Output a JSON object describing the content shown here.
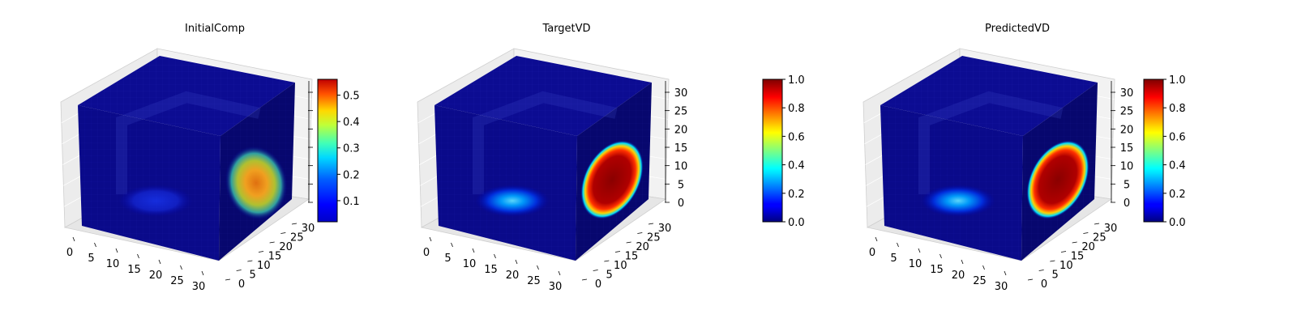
{
  "chart_data": [
    {
      "type": "3d-voxel",
      "title": "InitialComp",
      "x_ticks": [
        "0",
        "5",
        "10",
        "15",
        "20",
        "25",
        "30"
      ],
      "y_ticks": [
        "0",
        "5",
        "10",
        "15",
        "20",
        "25",
        "30"
      ],
      "z_ticks": [],
      "colorbar": {
        "colormap": "jet",
        "range": [
          0.02,
          0.56
        ],
        "ticks": [
          "0.1",
          "0.2",
          "0.3",
          "0.4",
          "0.5"
        ],
        "tick_values": [
          0.1,
          0.2,
          0.3,
          0.4,
          0.5
        ]
      },
      "side_blob_level": 0.45,
      "front_blob_level": 0.15
    },
    {
      "type": "3d-voxel",
      "title": "TargetVD",
      "x_ticks": [
        "0",
        "5",
        "10",
        "15",
        "20",
        "25",
        "30"
      ],
      "y_ticks": [
        "0",
        "5",
        "10",
        "15",
        "20",
        "25",
        "30"
      ],
      "z_ticks": [
        "0",
        "5",
        "10",
        "15",
        "20",
        "25",
        "30"
      ],
      "colorbar": {
        "colormap": "jet",
        "range": [
          0.0,
          1.0
        ],
        "ticks": [
          "0.0",
          "0.2",
          "0.4",
          "0.6",
          "0.8",
          "1.0"
        ],
        "tick_values": [
          0.0,
          0.2,
          0.4,
          0.6,
          0.8,
          1.0
        ]
      },
      "side_blob_level": 1.0,
      "front_blob_level": 0.3
    },
    {
      "type": "3d-voxel",
      "title": "PredictedVD",
      "x_ticks": [
        "0",
        "5",
        "10",
        "15",
        "20",
        "25",
        "30"
      ],
      "y_ticks": [
        "0",
        "5",
        "10",
        "15",
        "20",
        "25",
        "30"
      ],
      "z_ticks": [
        "0",
        "5",
        "10",
        "15",
        "20",
        "25",
        "30"
      ],
      "colorbar": {
        "colormap": "jet",
        "range": [
          0.0,
          1.0
        ],
        "ticks": [
          "0.0",
          "0.2",
          "0.4",
          "0.6",
          "0.8",
          "1.0"
        ],
        "tick_values": [
          0.0,
          0.2,
          0.4,
          0.6,
          0.8,
          1.0
        ]
      },
      "side_blob_level": 1.0,
      "front_blob_level": 0.3
    }
  ]
}
